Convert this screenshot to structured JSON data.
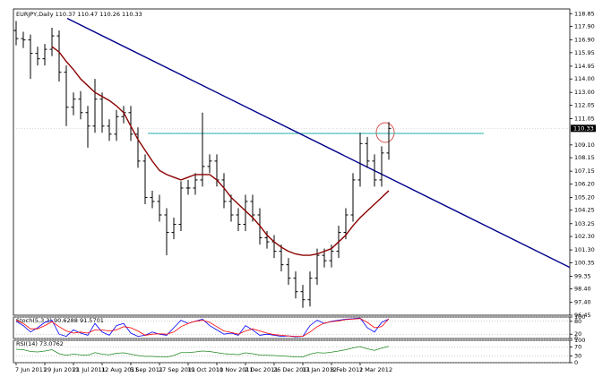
{
  "chart_data": [
    {
      "type": "ohlc",
      "title": "EURJPY,Daily 110.37 110.47 110.26 110.33",
      "categories": [
        "7 Jun 2011",
        null,
        null,
        null,
        "29 Jun 2011",
        null,
        null,
        null,
        "21 Jul 2011",
        null,
        null,
        null,
        "12 Aug 2011",
        null,
        null,
        null,
        "5 Sep 2011",
        null,
        null,
        null,
        "27 Sep 2011",
        null,
        null,
        null,
        "19 Oct 2011",
        null,
        null,
        null,
        "10 Nov 2011",
        null,
        null,
        null,
        "2 Dec 2011",
        null,
        null,
        null,
        "26 Dec 2011",
        null,
        null,
        null,
        "17 Jan 2012",
        null,
        null,
        null,
        "8 Feb 2012",
        null,
        null,
        null,
        "1 Mar 2012",
        null,
        null,
        null,
        null
      ],
      "open": [
        117.6,
        117.0,
        116.9,
        115.9,
        115.5,
        116.2,
        117.2,
        114.5,
        111.9,
        112.5,
        111.5,
        110.5,
        112.5,
        110.5,
        109.9,
        111.2,
        111.5,
        109.9,
        107.9,
        105.2,
        104.9,
        103.9,
        102.6,
        103.2,
        105.9,
        105.9,
        106.5,
        107.5,
        107.9,
        106.5,
        104.9,
        103.9,
        103.2,
        104.9,
        103.9,
        102.2,
        101.9,
        101.2,
        100.2,
        99.2,
        98.2,
        97.6,
        99.2,
        100.9,
        100.5,
        101.2,
        102.6,
        103.9,
        106.5,
        109.2,
        107.9,
        106.5,
        108.5
      ],
      "high": [
        118.3,
        117.5,
        117.3,
        116.4,
        116.6,
        117.8,
        117.6,
        115.0,
        113.0,
        113.1,
        112.0,
        114.0,
        113.0,
        111.0,
        111.7,
        112.0,
        112.0,
        110.4,
        108.4,
        105.7,
        105.4,
        104.4,
        103.7,
        106.4,
        106.5,
        107.0,
        111.5,
        108.4,
        108.4,
        107.0,
        105.4,
        104.4,
        105.4,
        105.4,
        104.4,
        102.7,
        102.4,
        101.7,
        100.7,
        99.7,
        98.7,
        99.7,
        101.4,
        101.4,
        101.7,
        103.1,
        104.4,
        107.0,
        110.0,
        109.7,
        108.4,
        109.0,
        110.8
      ],
      "low": [
        116.5,
        116.3,
        114.0,
        115.0,
        115.0,
        115.7,
        113.8,
        110.5,
        111.3,
        111.0,
        108.9,
        110.0,
        110.0,
        109.4,
        109.4,
        110.7,
        109.4,
        107.4,
        104.7,
        104.4,
        103.4,
        100.9,
        102.1,
        102.7,
        105.4,
        105.4,
        106.0,
        107.0,
        106.0,
        104.4,
        103.4,
        102.7,
        102.7,
        103.4,
        101.7,
        101.4,
        100.7,
        99.7,
        98.7,
        97.7,
        97.0,
        97.1,
        98.7,
        100.0,
        100.0,
        100.7,
        102.1,
        103.4,
        106.0,
        107.4,
        106.0,
        106.0,
        108.0
      ],
      "close": [
        117.0,
        116.9,
        115.9,
        115.5,
        116.2,
        117.2,
        114.5,
        111.9,
        112.5,
        111.5,
        110.5,
        112.5,
        110.5,
        109.9,
        111.2,
        111.5,
        109.9,
        107.9,
        105.2,
        104.9,
        103.9,
        102.6,
        103.2,
        105.9,
        105.9,
        106.5,
        107.5,
        107.9,
        106.5,
        104.9,
        103.9,
        103.2,
        104.9,
        103.9,
        102.2,
        101.9,
        101.2,
        100.2,
        99.2,
        98.2,
        97.6,
        99.2,
        100.9,
        100.5,
        101.2,
        102.6,
        103.9,
        106.5,
        109.2,
        107.9,
        106.5,
        108.5,
        110.33
      ],
      "color": "#000000",
      "moving_average": {
        "color": "#8b0000",
        "values": [
          null,
          null,
          null,
          null,
          null,
          116.4,
          116.0,
          115.3,
          114.7,
          114.0,
          113.5,
          113.0,
          112.7,
          112.4,
          112.0,
          111.5,
          110.5,
          109.5,
          108.7,
          107.9,
          107.2,
          106.9,
          106.7,
          106.5,
          106.7,
          106.9,
          106.9,
          106.9,
          106.5,
          105.9,
          105.2,
          104.7,
          104.2,
          103.7,
          103.1,
          102.4,
          101.9,
          101.5,
          101.2,
          101.0,
          100.9,
          100.9,
          101.0,
          101.2,
          101.4,
          101.9,
          102.4,
          103.1,
          103.7,
          104.2,
          104.7,
          105.2,
          105.7
        ]
      },
      "trendline": {
        "color": "#00008b",
        "values": [
          118.5,
          100.0
        ]
      },
      "level": {
        "color": "#20b2aa",
        "values": [
          109.95
        ]
      },
      "ylim": [
        96.45,
        119.2
      ],
      "yticks": [
        96.45,
        {
          "value": 97.4,
          "label": "97.40"
        },
        {
          "value": 98.4,
          "label": "98.40"
        },
        99.35,
        100.35,
        {
          "value": 101.3,
          "label": "101.30"
        },
        {
          "value": 102.3,
          "label": "102.30"
        },
        103.25,
        104.25,
        {
          "value": 105.2,
          "label": "105.20"
        },
        {
          "value": 106.2,
          "label": "106.20"
        },
        107.15,
        108.15,
        {
          "value": 109.1,
          "label": "109.10"
        },
        111.05,
        112.05,
        {
          "value": 113,
          "label": "113.00"
        },
        {
          "value": 114,
          "label": "114.00"
        },
        114.95,
        115.95,
        {
          "value": 116.9,
          "label": "116.90"
        },
        {
          "value": 117.9,
          "label": "117.90"
        },
        118.85
      ],
      "grid": false
    },
    {
      "type": "line",
      "title": "Stoch(5,3,3) 90.6288 91.5701",
      "series": [
        {
          "color": "#0000ff",
          "values": [
            80,
            60,
            30,
            50,
            75,
            85,
            20,
            10,
            40,
            25,
            15,
            70,
            30,
            15,
            60,
            70,
            25,
            10,
            15,
            30,
            20,
            15,
            50,
            85,
            70,
            80,
            90,
            60,
            40,
            20,
            25,
            15,
            60,
            40,
            15,
            20,
            15,
            10,
            12,
            8,
            10,
            60,
            85,
            70,
            80,
            85,
            90,
            92,
            95,
            50,
            30,
            75,
            90.6288
          ]
        },
        {
          "color": "#ff0000",
          "values": [
            85,
            70,
            45,
            45,
            60,
            78,
            55,
            35,
            25,
            30,
            25,
            40,
            40,
            35,
            40,
            55,
            50,
            35,
            15,
            20,
            22,
            20,
            30,
            55,
            70,
            80,
            85,
            75,
            55,
            35,
            28,
            20,
            35,
            45,
            35,
            25,
            18,
            15,
            12,
            10,
            10,
            30,
            55,
            72,
            78,
            82,
            88,
            90,
            93,
            75,
            50,
            55,
            91.5701
          ]
        }
      ],
      "ylim": [
        0,
        100
      ],
      "yticks": [
        0,
        20,
        80,
        100
      ]
    },
    {
      "type": "line",
      "title": "RSI(14) 73.0762",
      "series": [
        {
          "color": "#228b22",
          "values": [
            60,
            58,
            50,
            48,
            52,
            58,
            40,
            33,
            38,
            35,
            33,
            45,
            38,
            35,
            42,
            44,
            38,
            32,
            28,
            28,
            26,
            25,
            32,
            45,
            45,
            48,
            52,
            50,
            45,
            40,
            38,
            36,
            44,
            40,
            34,
            33,
            32,
            30,
            28,
            26,
            25,
            38,
            45,
            43,
            47,
            52,
            58,
            66,
            72,
            62,
            55,
            65,
            73.0762
          ]
        }
      ],
      "ylim": [
        0,
        100
      ],
      "yticks": [
        0,
        30,
        70,
        100
      ]
    }
  ]
}
